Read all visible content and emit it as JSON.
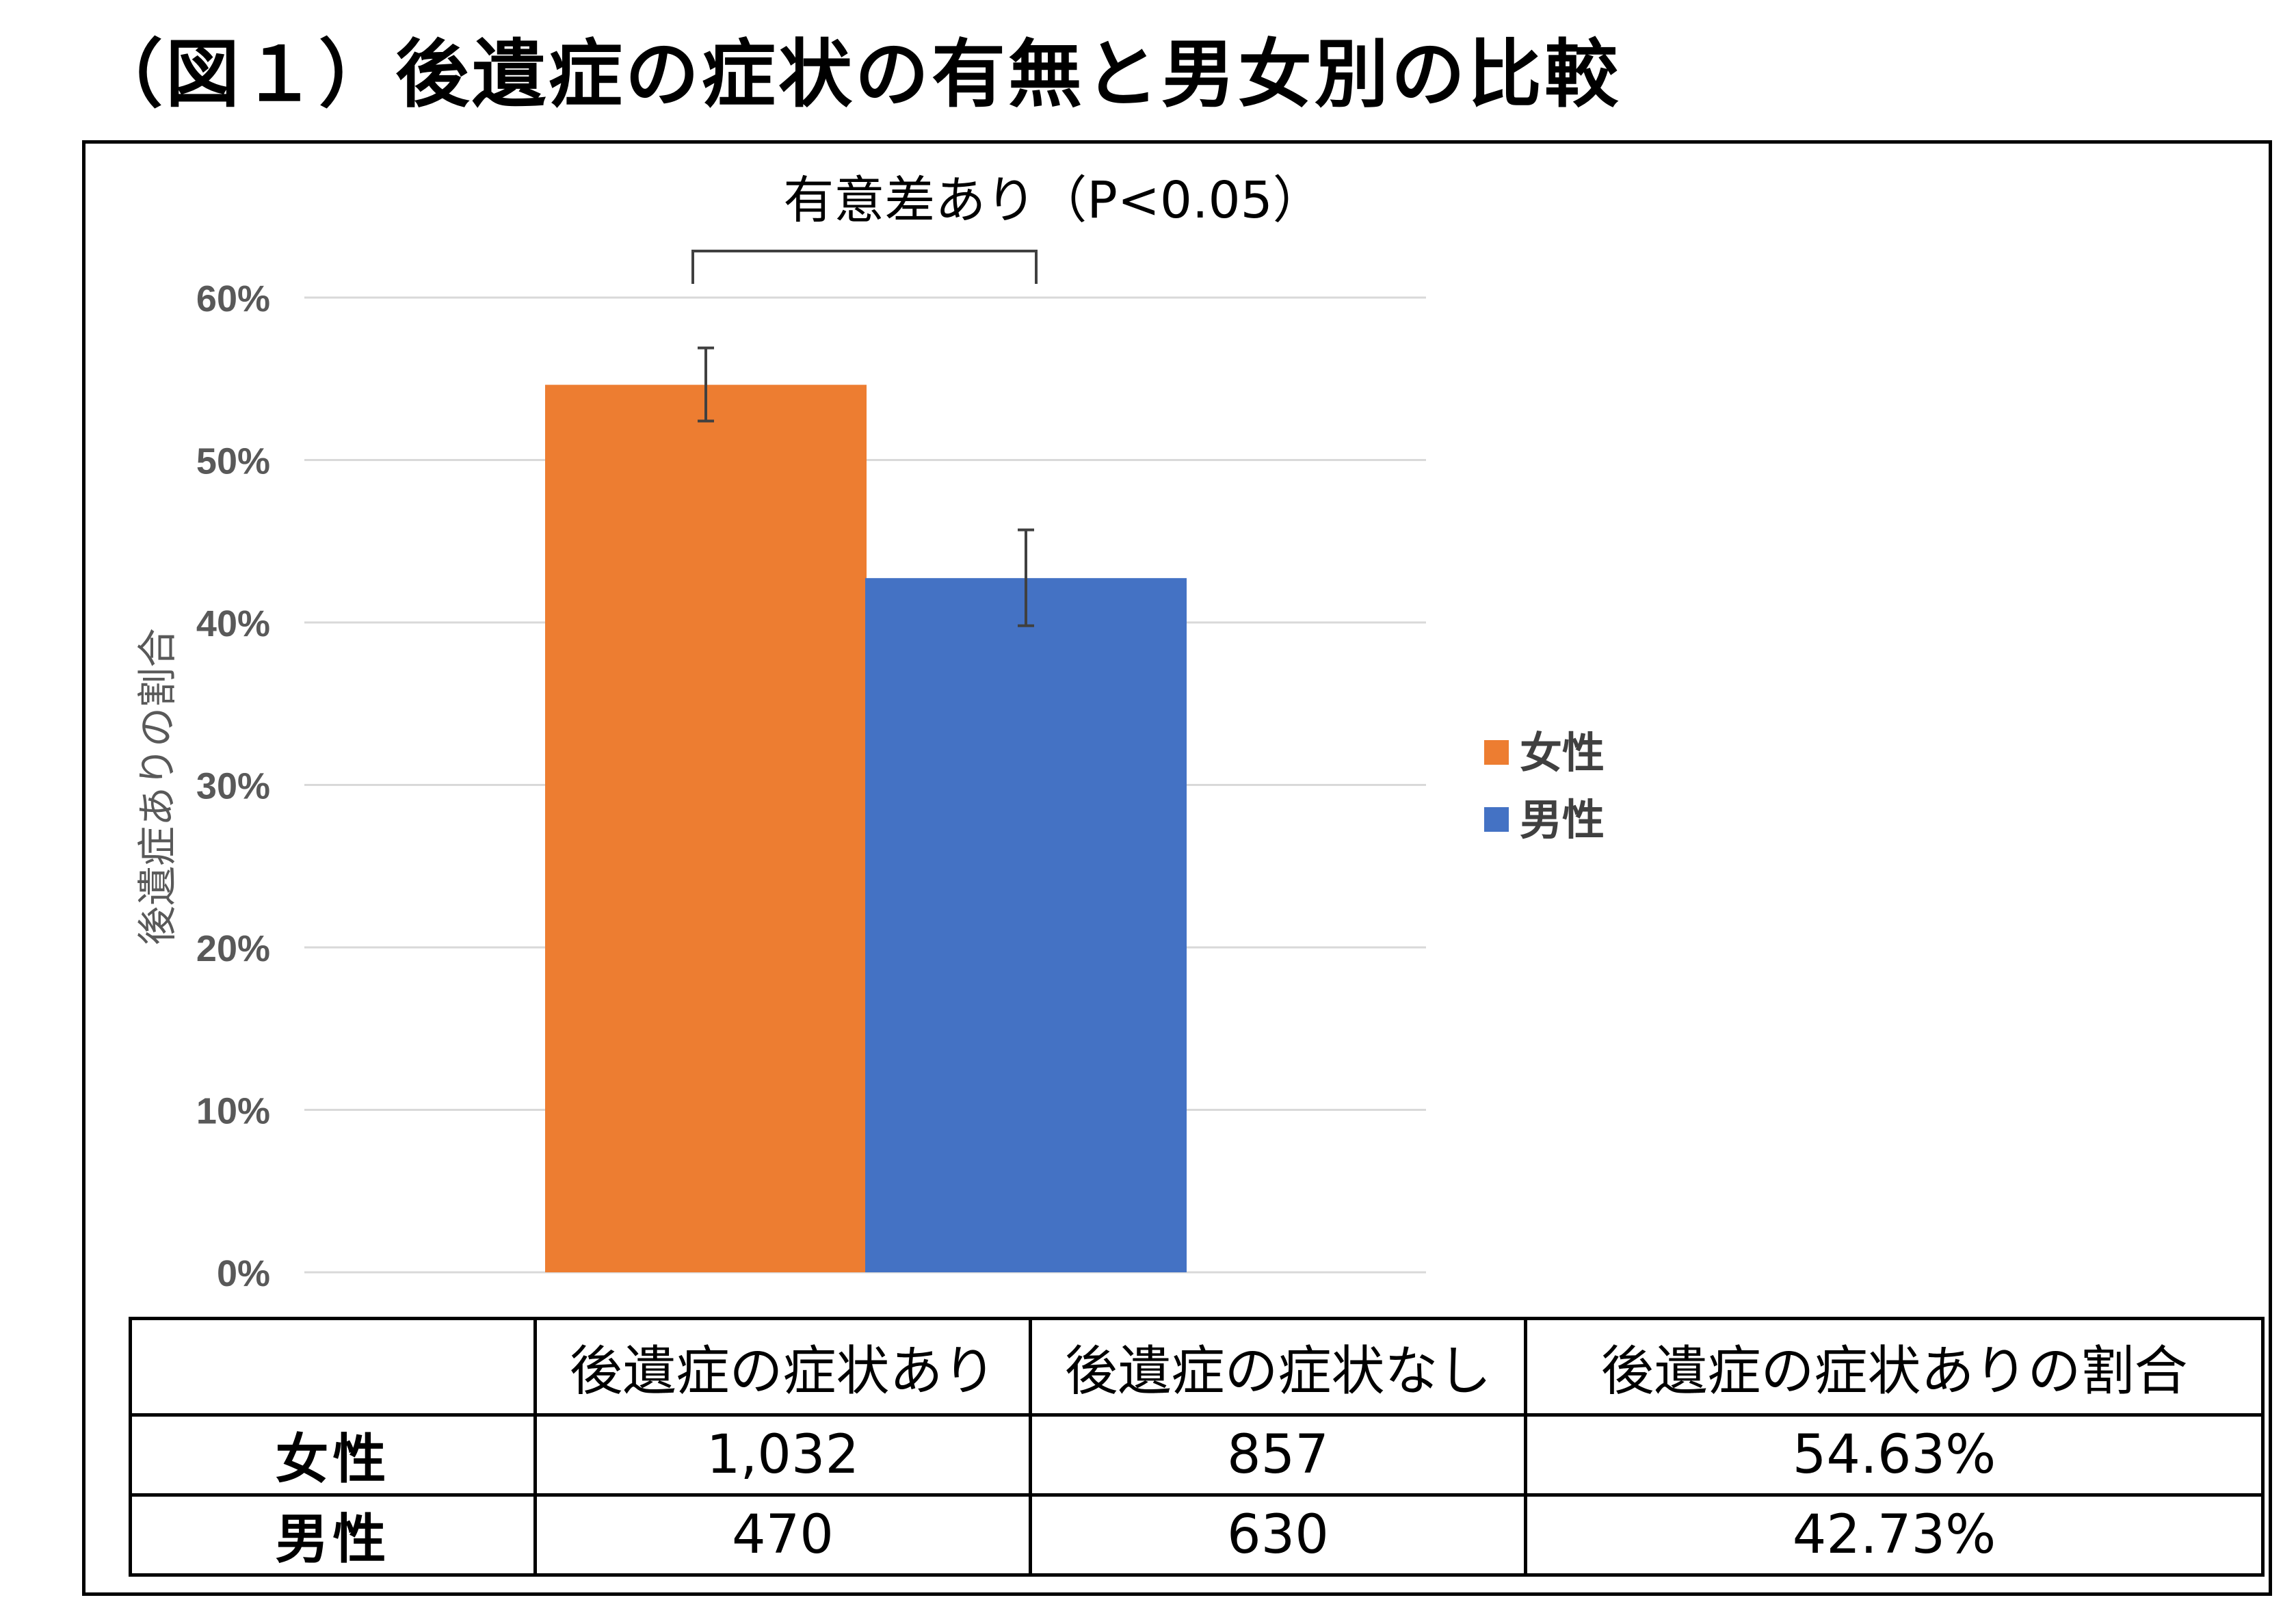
{
  "title": "（図１）後遺症の症状の有無と男女別の比較",
  "chart_data": {
    "type": "bar",
    "categories": [
      "女性",
      "男性"
    ],
    "values": [
      54.63,
      42.73
    ],
    "error_bars": [
      {
        "low": 52.4,
        "high": 56.9
      },
      {
        "low": 39.8,
        "high": 45.7
      }
    ],
    "colors": [
      "#ED7D31",
      "#4472C4"
    ],
    "ylabel": "後遺症ありの割合",
    "ylim": [
      0,
      60
    ],
    "yticks": [
      0,
      10,
      20,
      30,
      40,
      50,
      60
    ],
    "ytick_labels": [
      "0%",
      "10%",
      "20%",
      "30%",
      "40%",
      "50%",
      "60%"
    ],
    "grid": true,
    "legend": {
      "placement": "right",
      "entries": [
        "女性",
        "男性"
      ]
    },
    "annotation": "有意差あり（P<0.05）"
  },
  "table": {
    "headers": [
      "",
      "後遺症の症状あり",
      "後遺症の症状なし",
      "後遺症の症状ありの割合"
    ],
    "rows": [
      [
        "女性",
        "1,032",
        "857",
        "54.63%"
      ],
      [
        "男性",
        "470",
        "630",
        "42.73%"
      ]
    ]
  }
}
